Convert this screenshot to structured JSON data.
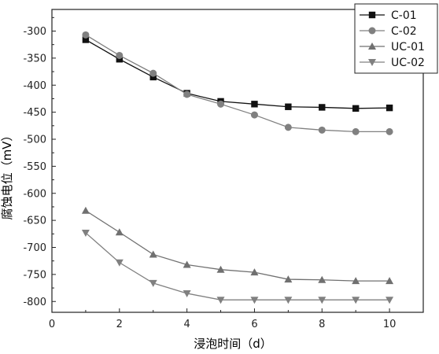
{
  "chart_data": {
    "type": "line",
    "title": "",
    "xlabel": "浸泡时间（d）",
    "ylabel": "腐蚀电位（mV）",
    "xlim": [
      0,
      11
    ],
    "ylim": [
      -820,
      -260
    ],
    "x_ticks": [
      0,
      2,
      4,
      6,
      8,
      10
    ],
    "y_ticks": [
      -300,
      -350,
      -400,
      -450,
      -500,
      -550,
      -600,
      -650,
      -700,
      -750,
      -800
    ],
    "grid": false,
    "legend_position": "top-right",
    "x": [
      1,
      2,
      3,
      4,
      5,
      6,
      7,
      8,
      9,
      10
    ],
    "series": [
      {
        "name": "C-01",
        "marker": "square",
        "color": "#111111",
        "values": [
          -316,
          -352,
          -385,
          -415,
          -430,
          -435,
          -440,
          -441,
          -443,
          -442
        ]
      },
      {
        "name": "C-02",
        "marker": "circle",
        "color": "#808080",
        "values": [
          -307,
          -345,
          -378,
          -417,
          -435,
          -455,
          -478,
          -483,
          -486,
          -486
        ]
      },
      {
        "name": "UC-01",
        "marker": "triangle-up",
        "color": "#707070",
        "values": [
          -632,
          -672,
          -713,
          -732,
          -741,
          -746,
          -759,
          -760,
          -762,
          -762
        ]
      },
      {
        "name": "UC-02",
        "marker": "triangle-down",
        "color": "#808080",
        "values": [
          -673,
          -728,
          -766,
          -785,
          -797,
          -797,
          -797,
          -797,
          -797,
          -797
        ]
      }
    ]
  }
}
